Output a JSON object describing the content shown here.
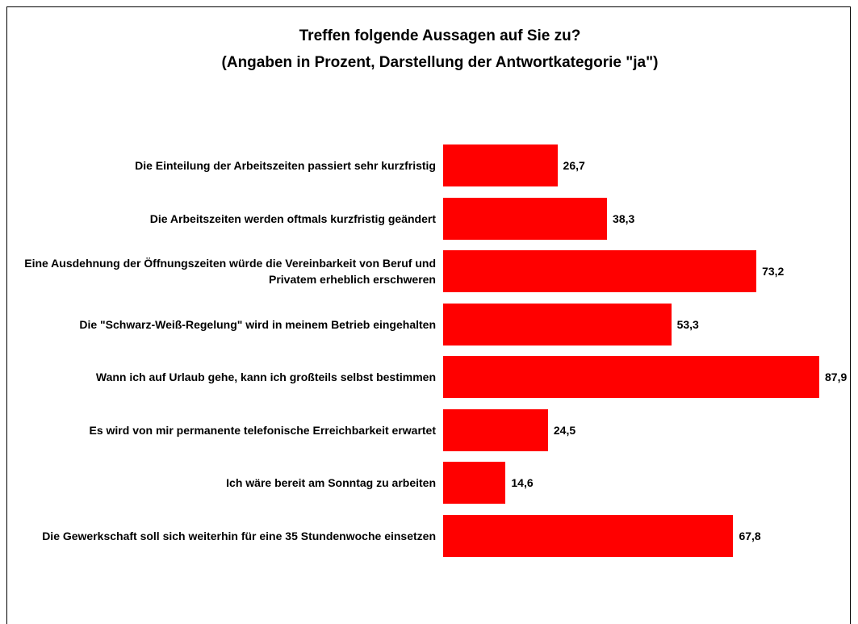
{
  "chart_data": {
    "type": "barh",
    "title": "Treffen folgende Aussagen auf Sie zu?",
    "subtitle": "(Angaben in Prozent, Darstellung der Antwortkategorie \"ja\")",
    "categories": [
      "Die Einteilung der Arbeitszeiten passiert sehr kurzfristig",
      "Die Arbeitszeiten werden oftmals kurzfristig geändert",
      "Eine Ausdehnung der Öffnungszeiten würde die Vereinbarkeit von Beruf und Privatem erheblich erschweren",
      "Die \"Schwarz-Weiß-Regelung\" wird in meinem Betrieb eingehalten",
      "Wann ich auf Urlaub gehe, kann ich großteils selbst bestimmen",
      "Es wird von mir permanente telefonische Erreichbarkeit erwartet",
      "Ich wäre bereit am Sonntag zu arbeiten",
      "Die Gewerkschaft soll sich weiterhin für eine 35 Stundenwoche einsetzen"
    ],
    "values": [
      26.7,
      38.3,
      73.2,
      53.3,
      87.9,
      24.5,
      14.6,
      67.8
    ],
    "value_labels": [
      "26,7",
      "38,3",
      "73,2",
      "53,3",
      "87,9",
      "24,5",
      "14,6",
      "67,8"
    ],
    "color": "#ff0000"
  }
}
